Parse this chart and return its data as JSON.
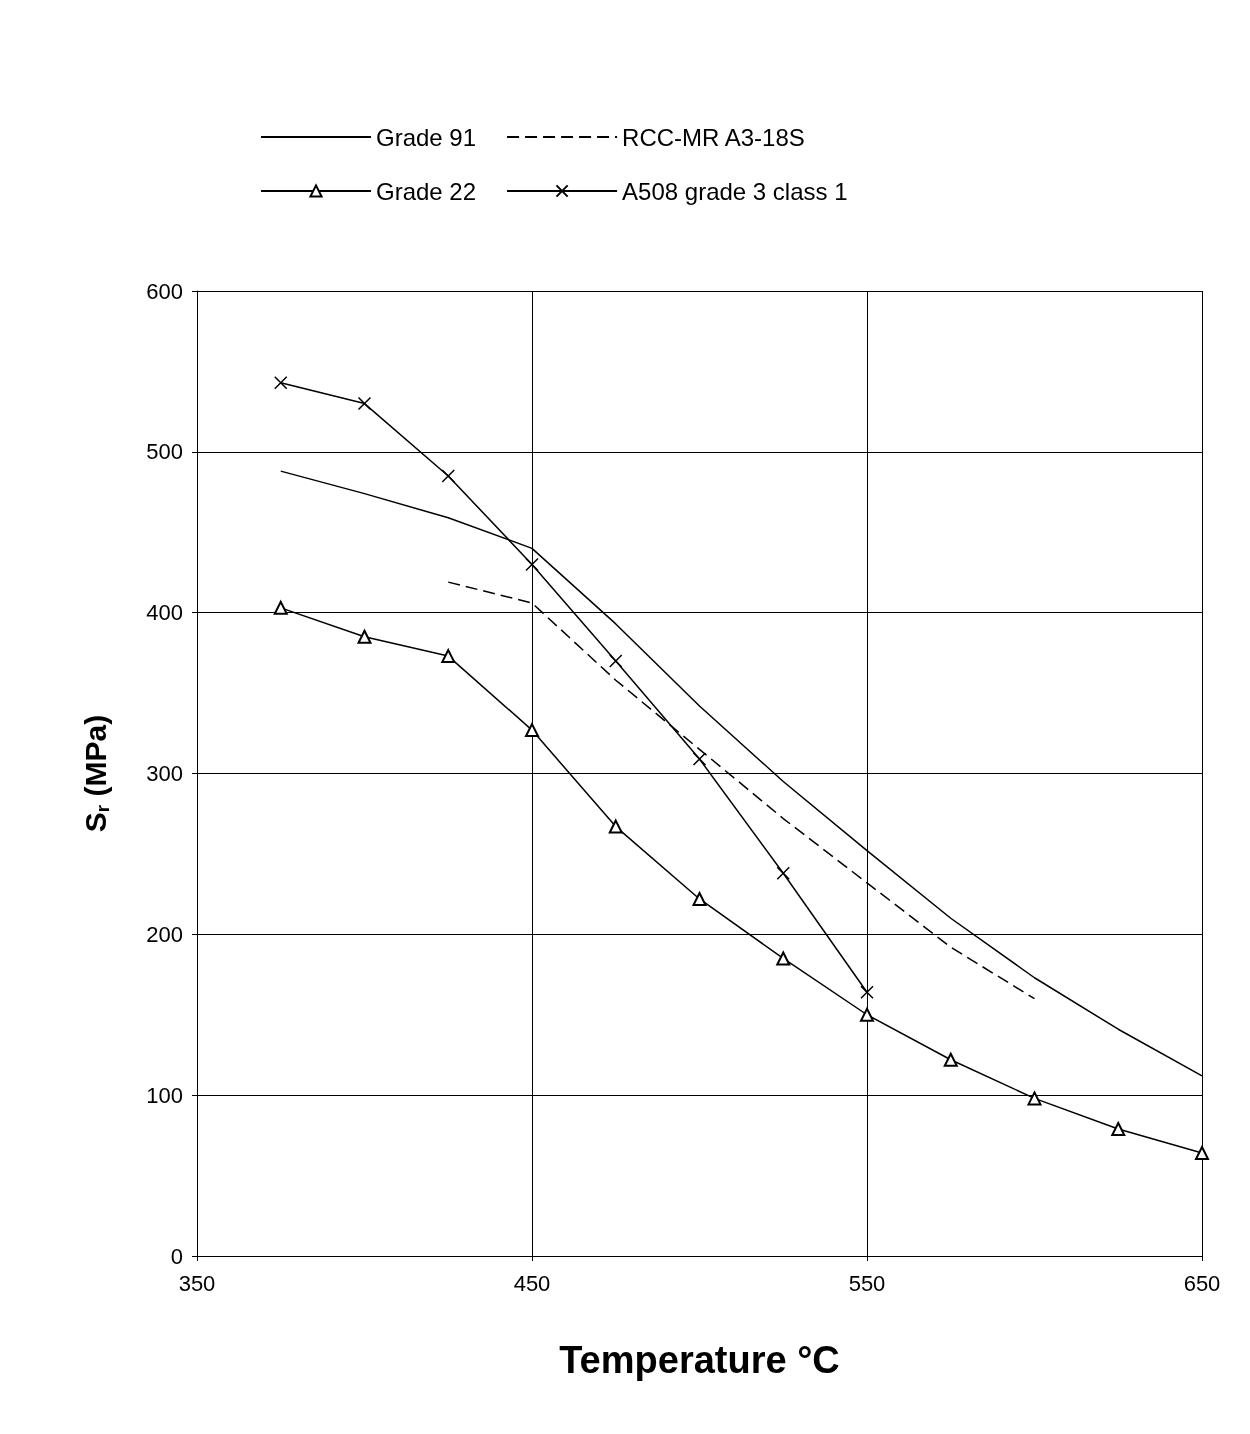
{
  "chart_data": {
    "type": "line",
    "xlabel": "Temperature °C",
    "ylabel": "S$_{r}$ (MPa)",
    "xlim": [
      350,
      650
    ],
    "xticks": [
      350,
      450,
      550,
      650
    ],
    "ylim": [
      0,
      600
    ],
    "yticks": [
      0,
      100,
      200,
      300,
      400,
      500,
      600
    ],
    "grid": true,
    "legend": "top",
    "series": [
      {
        "name": "Grade 91",
        "color": "#000000",
        "marker": "none",
        "line_style": "solid",
        "x": [
          375,
          400,
          425,
          450,
          475,
          500,
          525,
          550,
          575,
          600,
          625,
          650
        ],
        "values": [
          488,
          474,
          459,
          440,
          393,
          342,
          295,
          252,
          210,
          173,
          141,
          112
        ]
      },
      {
        "name": "RCC-MR A3-18S",
        "color": "#000000",
        "marker": "none",
        "line_style": "dashed",
        "x": [
          425,
          450,
          475,
          500,
          525,
          550,
          575,
          600
        ],
        "values": [
          419,
          406,
          358,
          315,
          272,
          232,
          192,
          160
        ]
      },
      {
        "name": "Grade 22",
        "color": "#000000",
        "marker": "triangle",
        "line_style": "solid",
        "x": [
          375,
          400,
          425,
          450,
          475,
          500,
          525,
          550,
          575,
          600,
          625,
          650
        ],
        "values": [
          403,
          385,
          373,
          327,
          267,
          222,
          185,
          150,
          122,
          98,
          79,
          64
        ]
      },
      {
        "name": "A508 grade 3 class 1",
        "color": "#000000",
        "marker": "cross",
        "line_style": "solid",
        "x": [
          375,
          400,
          425,
          450,
          475,
          500,
          525,
          550
        ],
        "values": [
          543,
          530,
          485,
          430,
          370,
          309,
          238,
          164
        ]
      }
    ]
  }
}
